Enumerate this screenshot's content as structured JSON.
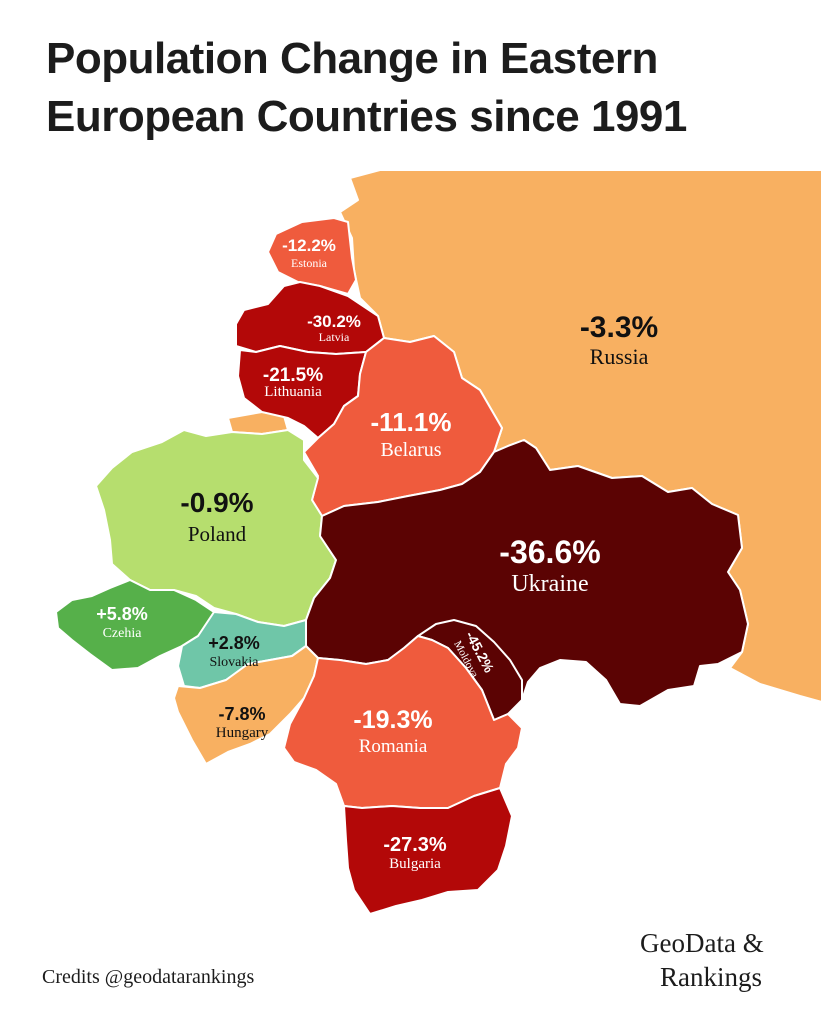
{
  "title": {
    "line1": "Population Change in Eastern",
    "line2": "European Countries since 1991"
  },
  "colors": {
    "ocean": "#ffffff",
    "russia": "#f8b061",
    "strong_decline": "#5b0303",
    "high_decline": "#b30808",
    "mid_decline": "#ef5b3d",
    "small_decline": "#f8b061",
    "small_growth": "#b6de6e",
    "growth": "#56b04a",
    "slight_growth": "#6fc6a8"
  },
  "countries": [
    {
      "id": "russia",
      "name": "Russia",
      "value": "-3.3%"
    },
    {
      "id": "estonia",
      "name": "Estonia",
      "value": "-12.2%"
    },
    {
      "id": "latvia",
      "name": "Latvia",
      "value": "-30.2%"
    },
    {
      "id": "lithuania",
      "name": "Lithuania",
      "value": "-21.5%"
    },
    {
      "id": "belarus",
      "name": "Belarus",
      "value": "-11.1%"
    },
    {
      "id": "poland",
      "name": "Poland",
      "value": "-0.9%"
    },
    {
      "id": "ukraine",
      "name": "Ukraine",
      "value": "-36.6%"
    },
    {
      "id": "czehia",
      "name": "Czehia",
      "value": "+5.8%"
    },
    {
      "id": "slovakia",
      "name": "Slovakia",
      "value": "+2.8%"
    },
    {
      "id": "moldova",
      "name": "Moldova",
      "value": "-45.2%"
    },
    {
      "id": "hungary",
      "name": "Hungary",
      "value": "-7.8%"
    },
    {
      "id": "romania",
      "name": "Romania",
      "value": "-19.3%"
    },
    {
      "id": "bulgaria",
      "name": "Bulgaria",
      "value": "-27.3%"
    }
  ],
  "credits": "Credits @geodatarankings",
  "brand": {
    "line1": "GeoData &",
    "line2": "Rankings"
  }
}
